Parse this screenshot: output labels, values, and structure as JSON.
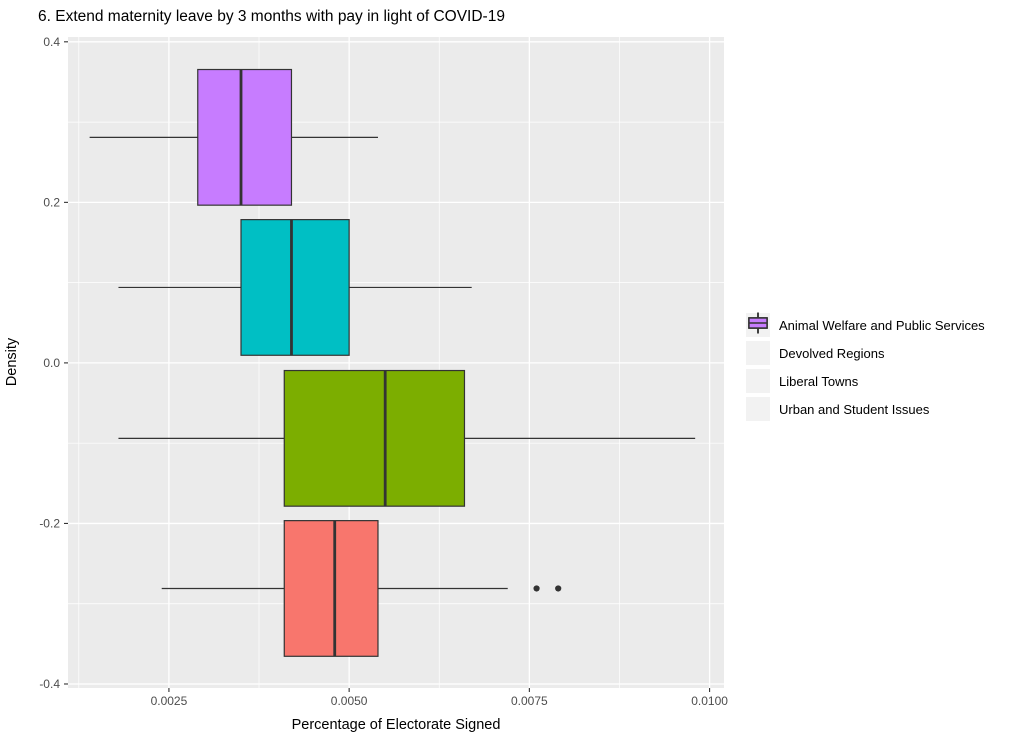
{
  "title": "6. Extend maternity leave by 3 months with pay in light of COVID-19",
  "chart_data": {
    "type": "boxplot",
    "orientation": "horizontal",
    "title": "6. Extend maternity leave by 3 months with pay in light of COVID-19",
    "xlabel": "Percentage of Electorate Signed",
    "ylabel": "Density",
    "xlim": [
      0.0011,
      0.0102
    ],
    "ylim": [
      -0.405,
      0.406
    ],
    "x_ticks": [
      0.0025,
      0.005,
      0.0075,
      0.01
    ],
    "x_tick_labels": [
      "0.0025",
      "0.0050",
      "0.0075",
      "0.0100"
    ],
    "x_minor_ticks": [
      0.00125,
      0.00375,
      0.00625,
      0.00875
    ],
    "y_ticks": [
      0.4,
      0.2,
      0.0,
      -0.2,
      -0.4
    ],
    "y_tick_labels": [
      "0.4",
      "0.2",
      "0.0",
      "-0.2",
      "-0.4"
    ],
    "y_minor_ticks": [
      0.3,
      0.1,
      -0.1,
      -0.3
    ],
    "grid": true,
    "box_half_height": 0.0845,
    "series": [
      {
        "name": "Urban and Student Issues",
        "color": "#C77CFF",
        "center": 0.281,
        "whisker_low": 0.0014,
        "q1": 0.0029,
        "median": 0.0035,
        "q3": 0.0042,
        "whisker_high": 0.0054,
        "outliers": []
      },
      {
        "name": "Liberal Towns",
        "color": "#00BFC4",
        "center": 0.094,
        "whisker_low": 0.0018,
        "q1": 0.0035,
        "median": 0.0042,
        "q3": 0.005,
        "whisker_high": 0.0067,
        "outliers": []
      },
      {
        "name": "Devolved Regions",
        "color": "#7CAE00",
        "center": -0.094,
        "whisker_low": 0.0018,
        "q1": 0.0041,
        "median": 0.0055,
        "q3": 0.0066,
        "whisker_high": 0.0098,
        "outliers": []
      },
      {
        "name": "Animal Welfare and Public Services",
        "color": "#F8766D",
        "center": -0.281,
        "whisker_low": 0.0024,
        "q1": 0.0041,
        "median": 0.0048,
        "q3": 0.0054,
        "whisker_high": 0.0072,
        "outliers": [
          0.0076,
          0.0079
        ]
      }
    ],
    "legend": {
      "position": "right",
      "entries": [
        {
          "label": "Animal Welfare and Public Services",
          "color": "#F8766D"
        },
        {
          "label": "Devolved Regions",
          "color": "#7CAE00"
        },
        {
          "label": "Liberal Towns",
          "color": "#00BFC4"
        },
        {
          "label": "Urban and Student Issues",
          "color": "#C77CFF"
        }
      ]
    }
  },
  "colors": {
    "panel_bg": "#EBEBEB",
    "grid": "#FFFFFF",
    "box_stroke": "#333333",
    "axis_text": "#4D4D4D",
    "tick_mark": "#333333",
    "legend_key_bg": "#F2F2F2",
    "outlier": "#333333"
  }
}
